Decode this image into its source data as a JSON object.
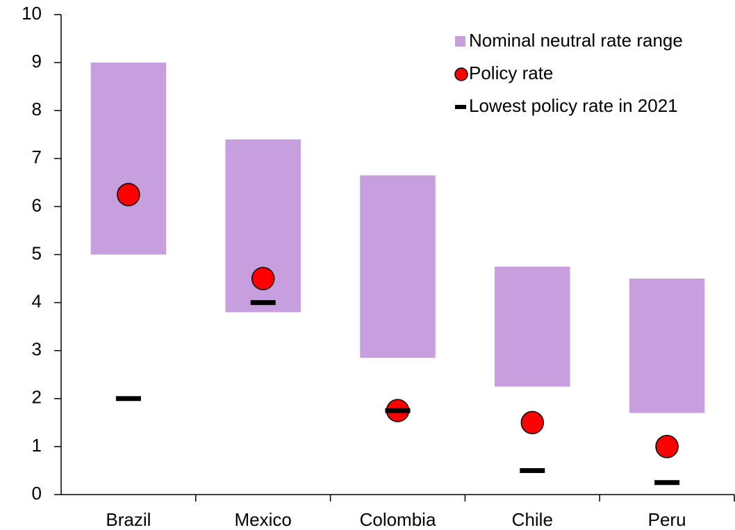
{
  "chart_data": {
    "type": "floating-bar",
    "categories": [
      "Brazil",
      "Mexico",
      "Colombia",
      "Chile",
      "Peru"
    ],
    "series": [
      {
        "name": "Nominal neutral rate range",
        "color": "#c79fdf",
        "marker": "bar",
        "low": [
          5,
          3.8,
          2.85,
          2.25,
          1.7
        ],
        "high": [
          9,
          7.4,
          6.65,
          4.75,
          4.5
        ]
      },
      {
        "name": "Policy rate",
        "color": "#ff0000",
        "marker": "circle",
        "values": [
          6.25,
          4.5,
          1.75,
          1.5,
          1.0
        ]
      },
      {
        "name": "Lowest policy rate in 2021",
        "color": "#000000",
        "marker": "dash",
        "values": [
          2,
          4,
          1.75,
          0.5,
          0.25
        ]
      }
    ],
    "ylim": [
      0,
      10
    ],
    "yticks": [
      0,
      1,
      2,
      3,
      4,
      5,
      6,
      7,
      8,
      9,
      10
    ],
    "grid": false,
    "legend": "upper right"
  }
}
